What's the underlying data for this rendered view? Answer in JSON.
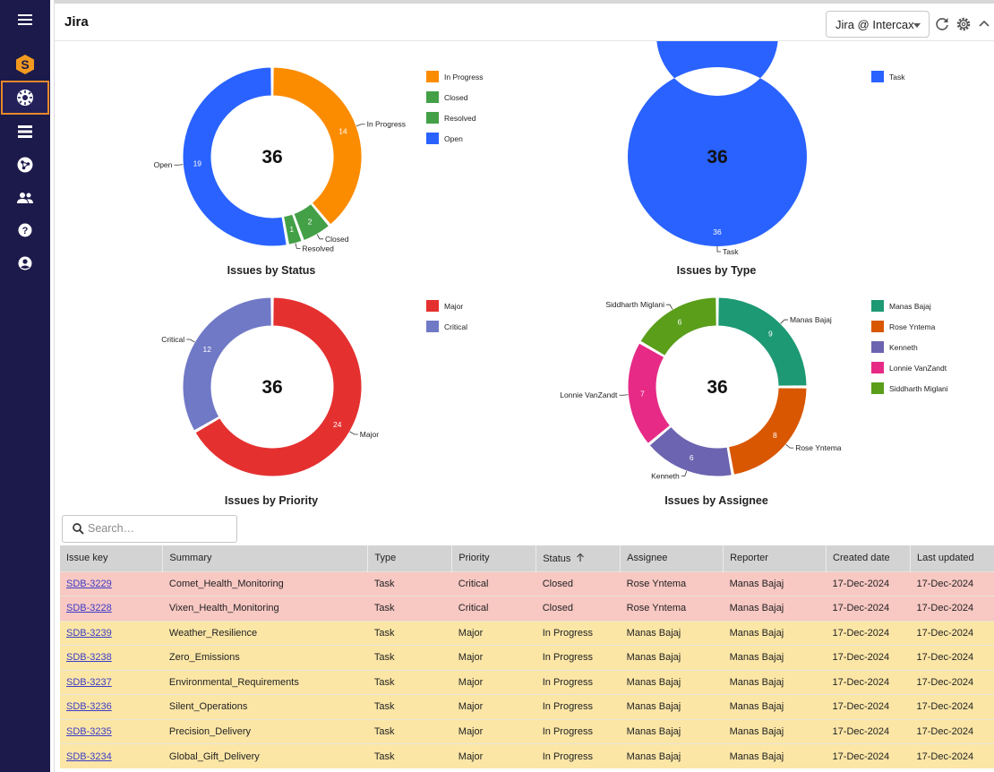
{
  "header": {
    "title": "Jira",
    "instance_select": "Jira @ Intercax",
    "icons": [
      "refresh-icon",
      "settings-icon",
      "collapse-icon"
    ]
  },
  "sidebar": {
    "items": [
      "menu-icon",
      "app-logo-icon",
      "dashboard-icon",
      "list-icon",
      "network-icon",
      "users-icon",
      "help-icon",
      "account-icon"
    ],
    "active": "dashboard-icon"
  },
  "charts": [
    {
      "title": "Issues by Status",
      "total": "36",
      "legend": [
        "In Progress",
        "Closed",
        "Resolved",
        "Open"
      ],
      "slices": [
        {
          "label": "In Progress",
          "value": 14,
          "color": "#fb8c00"
        },
        {
          "label": "Closed",
          "value": 2,
          "color": "#43a047"
        },
        {
          "label": "Resolved",
          "value": 1,
          "color": "#43a047"
        },
        {
          "label": "Open",
          "value": 19,
          "color": "#2962ff"
        }
      ]
    },
    {
      "title": "Issues by Type",
      "total": "36",
      "legend": [
        "Task"
      ],
      "slices": [
        {
          "label": "Task",
          "value": 36,
          "color": "#2962ff"
        }
      ]
    },
    {
      "title": "Issues by Priority",
      "total": "36",
      "legend": [
        "Major",
        "Critical"
      ],
      "slices": [
        {
          "label": "Major",
          "value": 24,
          "color": "#e53030"
        },
        {
          "label": "Critical",
          "value": 12,
          "color": "#7079c6"
        }
      ]
    },
    {
      "title": "Issues by Assignee",
      "total": "36",
      "legend": [
        "Manas Bajaj",
        "Rose Yntema",
        "Kenneth",
        "Lonnie VanZandt",
        "Siddharth Miglani"
      ],
      "slices": [
        {
          "label": "Manas Bajaj",
          "value": 9,
          "color": "#1d9973"
        },
        {
          "label": "Rose Yntema",
          "value": 8,
          "color": "#d95700"
        },
        {
          "label": "Kenneth",
          "value": 6,
          "color": "#6c64b0"
        },
        {
          "label": "Lonnie VanZandt",
          "value": 7,
          "color": "#e62a86"
        },
        {
          "label": "Siddharth Miglani",
          "value": 6,
          "color": "#5a9e1a"
        }
      ]
    }
  ],
  "search": {
    "placeholder": "Search…"
  },
  "table": {
    "columns": [
      "Issue key",
      "Summary",
      "Type",
      "Priority",
      "Status",
      "Assignee",
      "Reporter",
      "Created date",
      "Last updated"
    ],
    "sorted_column": "Status",
    "rows": [
      [
        "SDB-3229",
        "Comet_Health_Monitoring",
        "Task",
        "Critical",
        "Closed",
        "Rose Yntema",
        "Manas Bajaj",
        "17-Dec-2024",
        "17-Dec-2024"
      ],
      [
        "SDB-3228",
        "Vixen_Health_Monitoring",
        "Task",
        "Critical",
        "Closed",
        "Rose Yntema",
        "Manas Bajaj",
        "17-Dec-2024",
        "17-Dec-2024"
      ],
      [
        "SDB-3239",
        "Weather_Resilience",
        "Task",
        "Major",
        "In Progress",
        "Manas Bajaj",
        "Manas Bajaj",
        "17-Dec-2024",
        "17-Dec-2024"
      ],
      [
        "SDB-3238",
        "Zero_Emissions",
        "Task",
        "Major",
        "In Progress",
        "Manas Bajaj",
        "Manas Bajaj",
        "17-Dec-2024",
        "17-Dec-2024"
      ],
      [
        "SDB-3237",
        "Environmental_Requirements",
        "Task",
        "Major",
        "In Progress",
        "Manas Bajaj",
        "Manas Bajaj",
        "17-Dec-2024",
        "17-Dec-2024"
      ],
      [
        "SDB-3236",
        "Silent_Operations",
        "Task",
        "Major",
        "In Progress",
        "Manas Bajaj",
        "Manas Bajaj",
        "17-Dec-2024",
        "17-Dec-2024"
      ],
      [
        "SDB-3235",
        "Precision_Delivery",
        "Task",
        "Major",
        "In Progress",
        "Manas Bajaj",
        "Manas Bajaj",
        "17-Dec-2024",
        "17-Dec-2024"
      ],
      [
        "SDB-3234",
        "Global_Gift_Delivery",
        "Task",
        "Major",
        "In Progress",
        "Manas Bajaj",
        "Manas Bajaj",
        "17-Dec-2024",
        "17-Dec-2024"
      ]
    ]
  }
}
